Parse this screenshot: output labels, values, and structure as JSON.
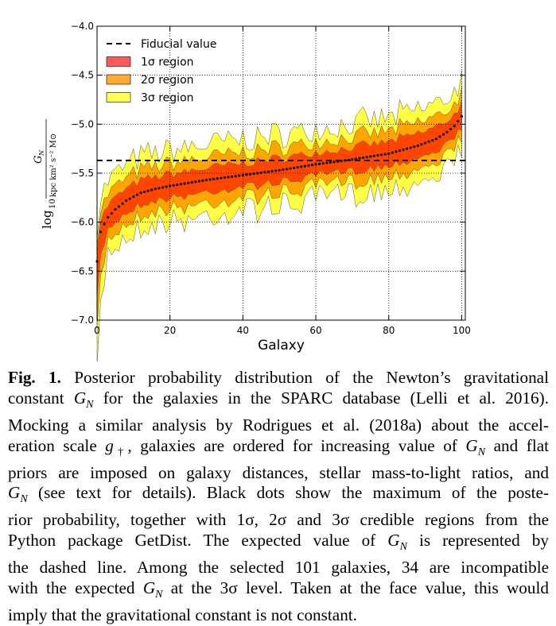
{
  "chart_data": {
    "type": "area",
    "xlabel": "Galaxy",
    "ylabel_main": "log",
    "ylabel_sub": "10",
    "ylabel_num": "G",
    "ylabel_num_sub": "N",
    "ylabel_den": "kpc km² s⁻² M⊙",
    "xlim": [
      0,
      101
    ],
    "ylim": [
      -7.0,
      -4.0
    ],
    "xticks": [
      "0",
      "20",
      "40",
      "60",
      "80",
      "100"
    ],
    "xtick_values": [
      0,
      20,
      40,
      60,
      80,
      100
    ],
    "yticks": [
      "−4.0",
      "−4.5",
      "−5.0",
      "−5.5",
      "−6.0",
      "−6.5",
      "−7.0"
    ],
    "ytick_values": [
      -4.0,
      -4.5,
      -5.0,
      -5.5,
      -6.0,
      -6.5,
      -7.0
    ],
    "grid": true,
    "legend_position": "top-left",
    "fiducial_value": -5.37,
    "legend": [
      {
        "label": "Fiducial value",
        "style": "dashed-line",
        "color": "#000000"
      },
      {
        "label": "1σ region",
        "style": "patch",
        "color": "#ff5a5a"
      },
      {
        "label": "2σ region",
        "style": "patch",
        "color": "#ffaa33"
      },
      {
        "label": "3σ region",
        "style": "patch",
        "color": "#ffff55"
      }
    ],
    "colors": {
      "one_sigma": "#ff4500",
      "two_sigma": "#ffa500",
      "three_sigma": "#ffff44"
    },
    "n_galaxies": 101,
    "median_anchors": {
      "x": [
        0,
        1,
        2,
        3,
        5,
        8,
        12,
        16,
        20,
        30,
        40,
        50,
        60,
        70,
        80,
        88,
        93,
        96,
        98,
        100
      ],
      "y": [
        -6.4,
        -6.1,
        -6.02,
        -5.95,
        -5.87,
        -5.78,
        -5.7,
        -5.66,
        -5.63,
        -5.57,
        -5.52,
        -5.47,
        -5.41,
        -5.36,
        -5.3,
        -5.22,
        -5.15,
        -5.08,
        -5.02,
        -4.92
      ]
    },
    "sigma_half_widths": {
      "one": 0.1,
      "two": 0.19,
      "three": 0.3
    }
  },
  "caption": {
    "label": "Fig. 1.",
    "lines": [
      " Posterior probability distribution of the Newton’s gravitational",
      "constant G_N for the galaxies in the SPARC database (Lelli et al. 2016).",
      "Mocking a similar analysis by Rodrigues et al. (2018a) about the accel-",
      "eration scale g†, galaxies are ordered for increasing value of G_N and flat",
      "priors are imposed on galaxy distances, stellar mass-to-light ratios, and",
      "G_N (see text for details). Black dots show the maximum of the poste-",
      "rior probability, together with 1σ, 2σ and 3σ credible regions from the",
      "Python package GetDist. The expected value of G_N is represented by",
      "the dashed line. Among the selected 101 galaxies, 34 are incompatible",
      "with the expected G_N at the 3σ level. Taken at the face value, this would",
      "imply that the gravitational constant is not constant."
    ]
  }
}
